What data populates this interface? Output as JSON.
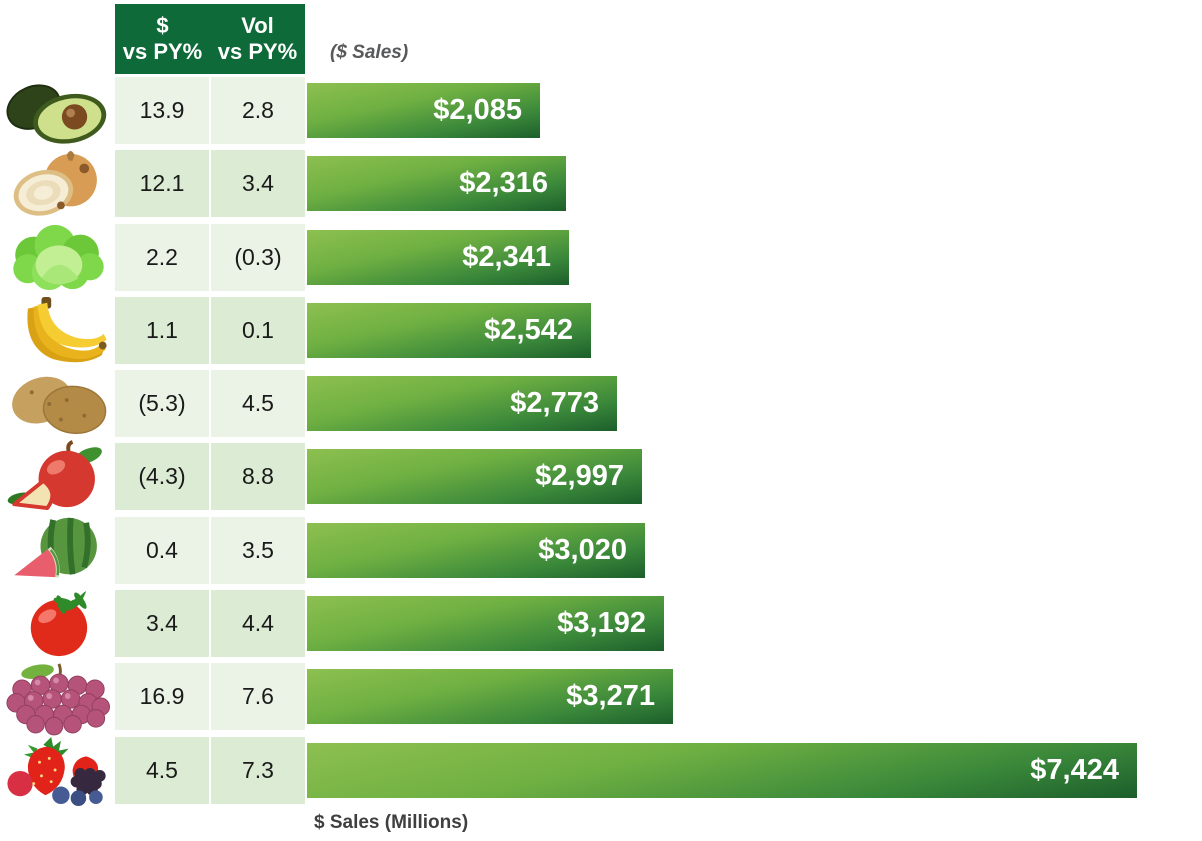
{
  "header": {
    "col1": {
      "line1": "$",
      "line2": "vs PY%"
    },
    "col2": {
      "line1": "Vol",
      "line2": "vs PY%"
    },
    "bar_section_title": "($ Sales)"
  },
  "footer": {
    "axis_label": "$ Sales (Millions)"
  },
  "colors": {
    "page_bg": "#FFFFFF",
    "header_bg": "#0E6A38",
    "row_bg_light": "#EAF3E6",
    "row_bg_dark": "#DCEBD3",
    "bar_gradient_start": "#8DC050",
    "bar_gradient_end": "#1C5E2B",
    "bar_label": "#FFFFFF",
    "table_text": "#1A1A1A",
    "bar_title_text": "#58595B",
    "axis_label_text": "#3F3F3F"
  },
  "rows": [
    {
      "icon": "avocado-icon",
      "dollar_vs_py": "13.9",
      "vol_vs_py": "2.8",
      "sales_label": "$2,085",
      "sales_value": 2085
    },
    {
      "icon": "onion-icon",
      "dollar_vs_py": "12.1",
      "vol_vs_py": "3.4",
      "sales_label": "$2,316",
      "sales_value": 2316
    },
    {
      "icon": "lettuce-icon",
      "dollar_vs_py": "2.2",
      "vol_vs_py": "(0.3)",
      "sales_label": "$2,341",
      "sales_value": 2341
    },
    {
      "icon": "banana-icon",
      "dollar_vs_py": "1.1",
      "vol_vs_py": "0.1",
      "sales_label": "$2,542",
      "sales_value": 2542
    },
    {
      "icon": "potato-icon",
      "dollar_vs_py": "(5.3)",
      "vol_vs_py": "4.5",
      "sales_label": "$2,773",
      "sales_value": 2773
    },
    {
      "icon": "apple-icon",
      "dollar_vs_py": "(4.3)",
      "vol_vs_py": "8.8",
      "sales_label": "$2,997",
      "sales_value": 2997
    },
    {
      "icon": "watermelon-icon",
      "dollar_vs_py": "0.4",
      "vol_vs_py": "3.5",
      "sales_label": "$3,020",
      "sales_value": 3020
    },
    {
      "icon": "tomato-icon",
      "dollar_vs_py": "3.4",
      "vol_vs_py": "4.4",
      "sales_label": "$3,192",
      "sales_value": 3192
    },
    {
      "icon": "grapes-icon",
      "dollar_vs_py": "16.9",
      "vol_vs_py": "7.6",
      "sales_label": "$3,271",
      "sales_value": 3271
    },
    {
      "icon": "berries-icon",
      "dollar_vs_py": "4.5",
      "vol_vs_py": "7.3",
      "sales_label": "$7,424",
      "sales_value": 7424
    }
  ],
  "chart_data": {
    "type": "bar",
    "orientation": "horizontal",
    "title": "($ Sales)",
    "xlabel": "$ Sales (Millions)",
    "categories": [
      "Avocados",
      "Onions",
      "Lettuce",
      "Bananas",
      "Potatoes",
      "Apples",
      "Watermelon",
      "Tomatoes",
      "Grapes",
      "Berries"
    ],
    "series": [
      {
        "name": "$ vs PY%",
        "values": [
          13.9,
          12.1,
          2.2,
          1.1,
          -5.3,
          -4.3,
          0.4,
          3.4,
          16.9,
          4.5
        ]
      },
      {
        "name": "Vol vs PY%",
        "values": [
          2.8,
          3.4,
          -0.3,
          0.1,
          4.5,
          8.8,
          3.5,
          4.4,
          7.6,
          7.3
        ]
      },
      {
        "name": "$ Sales (Millions)",
        "values": [
          2085,
          2316,
          2341,
          2542,
          2773,
          2997,
          3020,
          3192,
          3271,
          7424
        ]
      }
    ],
    "data_labels": [
      "$2,085",
      "$2,316",
      "$2,341",
      "$2,542",
      "$2,773",
      "$2,997",
      "$3,020",
      "$3,192",
      "$3,271",
      "$7,424"
    ],
    "xlim": [
      0,
      7424
    ],
    "negative_format": "parentheses",
    "legend": "none",
    "grid": false,
    "sort_order": "ascending by $ Sales"
  }
}
